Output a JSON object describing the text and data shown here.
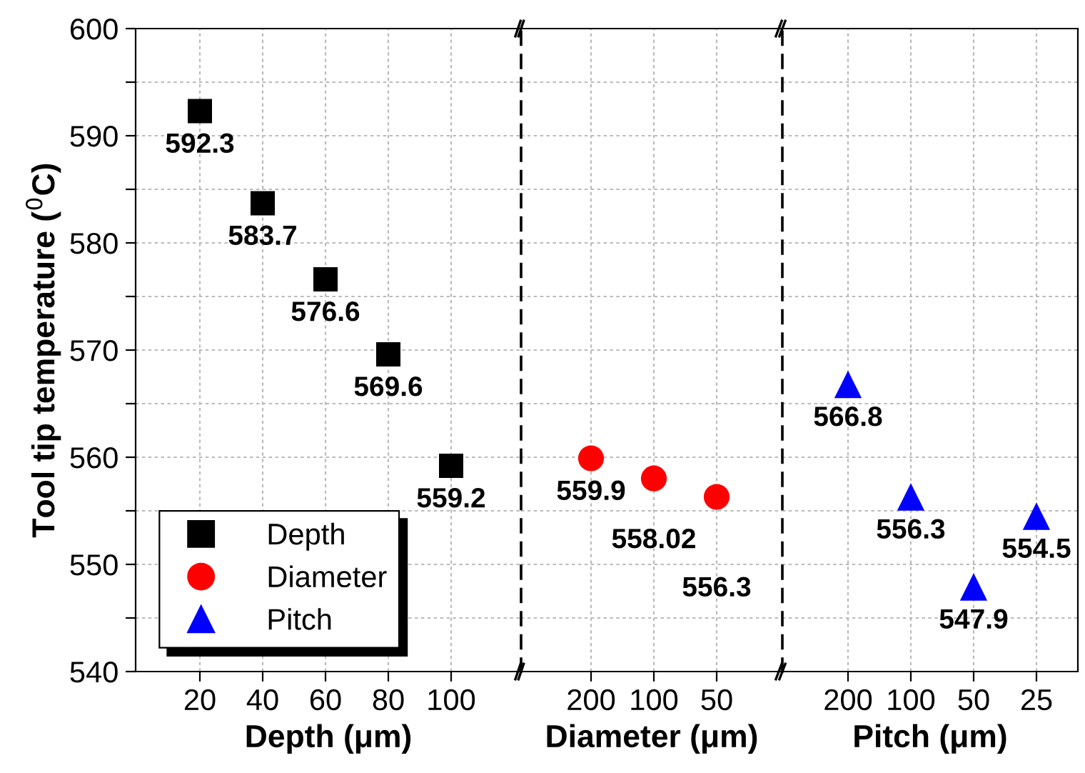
{
  "chart_data": [
    {
      "type": "scatter",
      "ylabel": "Tool tip temperature ($^{0}$C)",
      "xlabel": "Depth (μm)",
      "categories": [
        "20",
        "40",
        "60",
        "80",
        "100"
      ],
      "series": [
        {
          "name": "Depth",
          "color": "#000000",
          "marker": "square",
          "values": [
            592.3,
            583.7,
            576.6,
            569.6,
            559.2
          ]
        }
      ],
      "ylim": [
        540,
        600
      ],
      "yticks": [
        540,
        {
          "value": 545,
          "label": null
        },
        550,
        {
          "value": 555,
          "label": null
        },
        560,
        {
          "value": 565,
          "label": null
        },
        570,
        {
          "value": 575,
          "label": null
        },
        580,
        {
          "value": 585,
          "label": null
        },
        590,
        {
          "value": 595,
          "label": null
        },
        600
      ],
      "grid": true,
      "data_labels": true,
      "legend": "bottom left"
    },
    {
      "type": "scatter",
      "xlabel": "Diameter (μm)",
      "categories": [
        "200",
        "100",
        "50"
      ],
      "series": [
        {
          "name": "Diameter",
          "color": "#ff0000",
          "marker": "circle",
          "values": [
            559.9,
            558.02,
            556.3
          ]
        }
      ],
      "ylim": [
        540,
        600
      ],
      "yticks": [
        540,
        {
          "value": 545,
          "label": null
        },
        550,
        {
          "value": 555,
          "label": null
        },
        560,
        {
          "value": 565,
          "label": null
        },
        570,
        {
          "value": 575,
          "label": null
        },
        580,
        {
          "value": 585,
          "label": null
        },
        590,
        {
          "value": 595,
          "label": null
        },
        600
      ],
      "grid": true,
      "data_labels": true,
      "tick_labels": "x"
    },
    {
      "type": "scatter",
      "xlabel": "Pitch (μm)",
      "categories": [
        "200",
        "100",
        "50",
        "25"
      ],
      "series": [
        {
          "name": "Pitch",
          "color": "#0000ff",
          "marker": "triangle",
          "values": [
            566.8,
            556.3,
            547.9,
            554.5
          ]
        }
      ],
      "ylim": [
        540,
        600
      ],
      "yticks": [
        540,
        {
          "value": 545,
          "label": null
        },
        550,
        {
          "value": 555,
          "label": null
        },
        560,
        {
          "value": 565,
          "label": null
        },
        570,
        {
          "value": 575,
          "label": null
        },
        580,
        {
          "value": 585,
          "label": null
        },
        590,
        {
          "value": 595,
          "label": null
        },
        600
      ],
      "grid": true,
      "data_labels": true,
      "tick_labels": "x"
    }
  ]
}
